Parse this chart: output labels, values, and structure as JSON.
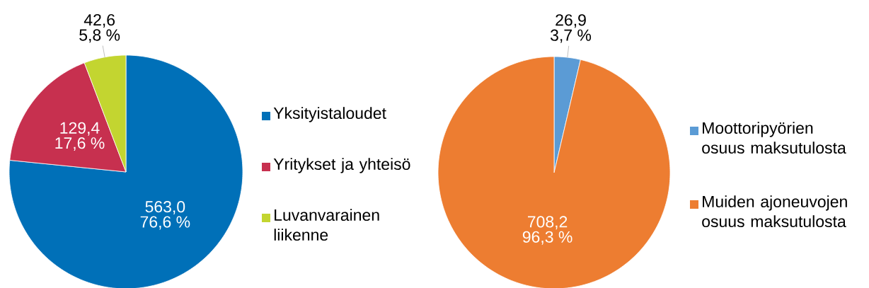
{
  "chart_data": [
    {
      "type": "pie",
      "categories": [
        "Yksityistaloudet",
        "Yritykset ja yhteisö",
        "Luvanvarainen liikenne"
      ],
      "values": [
        563.0,
        129.4,
        42.6
      ],
      "colors": [
        "#0070b8",
        "#c7304f",
        "#c3d530"
      ],
      "value_labels": [
        "563,0",
        "129,4",
        "42,6"
      ],
      "annotations": [
        {
          "text": "76,6 %",
          "x": "Yksityistaloudet"
        },
        {
          "text": "17,6 %",
          "x": "Yritykset ja yhteisö"
        },
        {
          "text": "5,8 %",
          "x": "Luvanvarainen liikenne"
        }
      ],
      "legend": "right"
    },
    {
      "type": "pie",
      "categories": [
        "Moottoripyörien osuus maksutulosta",
        "Muiden ajoneuvojen osuus maksutulosta"
      ],
      "values": [
        26.9,
        708.2
      ],
      "colors": [
        "#5b9bd5",
        "#ed7d31"
      ],
      "value_labels": [
        "26,9",
        "708,2"
      ],
      "annotations": [
        {
          "text": "3,7 %",
          "x": "Moottoripyörien osuus maksutulosta"
        },
        {
          "text": "96,3 %",
          "x": "Muiden ajoneuvojen osuus maksutulosta"
        }
      ],
      "legend": "right"
    }
  ]
}
